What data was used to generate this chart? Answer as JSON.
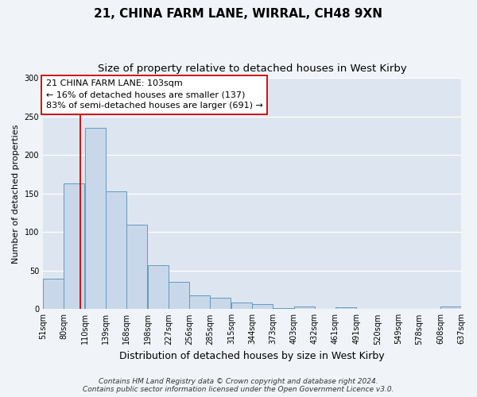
{
  "title": "21, CHINA FARM LANE, WIRRAL, CH48 9XN",
  "subtitle": "Size of property relative to detached houses in West Kirby",
  "xlabel": "Distribution of detached houses by size in West Kirby",
  "ylabel": "Number of detached properties",
  "bar_left_edges": [
    51,
    80,
    110,
    139,
    168,
    198,
    227,
    256,
    285,
    315,
    344,
    373,
    403,
    432,
    461,
    491,
    520,
    549,
    578,
    608
  ],
  "bar_heights": [
    39,
    163,
    235,
    153,
    110,
    57,
    35,
    18,
    15,
    9,
    7,
    1,
    3,
    0,
    2,
    0,
    0,
    0,
    0,
    3
  ],
  "bin_width": 29,
  "tick_labels": [
    "51sqm",
    "80sqm",
    "110sqm",
    "139sqm",
    "168sqm",
    "198sqm",
    "227sqm",
    "256sqm",
    "285sqm",
    "315sqm",
    "344sqm",
    "373sqm",
    "403sqm",
    "432sqm",
    "461sqm",
    "491sqm",
    "520sqm",
    "549sqm",
    "578sqm",
    "608sqm",
    "637sqm"
  ],
  "bar_color": "#c8d8ea",
  "bar_edge_color": "#6699bb",
  "vline_x": 103,
  "vline_color": "#cc0000",
  "annotation_text": "21 CHINA FARM LANE: 103sqm\n← 16% of detached houses are smaller (137)\n83% of semi-detached houses are larger (691) →",
  "annotation_box_color": "#ffffff",
  "annotation_box_edge_color": "#cc0000",
  "ylim": [
    0,
    300
  ],
  "yticks": [
    0,
    50,
    100,
    150,
    200,
    250,
    300
  ],
  "bg_color": "#f0f4f8",
  "plot_bg_color": "#dde6f0",
  "grid_color": "#ffffff",
  "footer_line1": "Contains HM Land Registry data © Crown copyright and database right 2024.",
  "footer_line2": "Contains public sector information licensed under the Open Government Licence v3.0.",
  "title_fontsize": 11,
  "subtitle_fontsize": 9.5,
  "xlabel_fontsize": 9,
  "ylabel_fontsize": 8,
  "tick_fontsize": 7,
  "annotation_fontsize": 8,
  "footer_fontsize": 6.5
}
